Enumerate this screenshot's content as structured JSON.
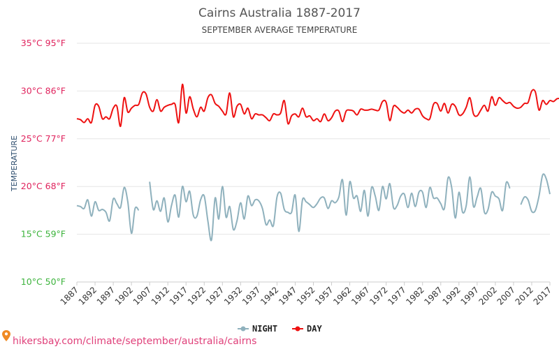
{
  "chart_data": {
    "type": "line",
    "title": "Cairns Australia 1887-2017",
    "subtitle": "SEPTEMBER AVERAGE TEMPERATURE",
    "ylabel": "TEMPERATURE",
    "ylim": [
      10,
      35
    ],
    "xlim": [
      1887,
      2017
    ],
    "y_ticks": [
      {
        "value": 35,
        "label": "35°C 95°F",
        "color": "#e0245e"
      },
      {
        "value": 30,
        "label": "30°C 86°F",
        "color": "#e0245e"
      },
      {
        "value": 25,
        "label": "25°C 77°F",
        "color": "#e0245e"
      },
      {
        "value": 20,
        "label": "20°C 68°F",
        "color": "#e0245e"
      },
      {
        "value": 15,
        "label": "15°C 59°F",
        "color": "#3cb33c"
      },
      {
        "value": 10,
        "label": "10°C 50°F",
        "color": "#3cb33c"
      }
    ],
    "x_ticks": [
      1887,
      1892,
      1897,
      1902,
      1907,
      1912,
      1917,
      1922,
      1927,
      1932,
      1937,
      1942,
      1947,
      1952,
      1957,
      1962,
      1967,
      1972,
      1977,
      1982,
      1987,
      1992,
      1997,
      2002,
      2007,
      2012,
      2017
    ],
    "grid": true,
    "legend_position": "bottom",
    "series": [
      {
        "name": "NIGHT",
        "color": "#8fb1bd",
        "start_year": 1887,
        "values": [
          18.0,
          17.9,
          17.7,
          18.6,
          16.9,
          18.4,
          17.5,
          17.6,
          17.3,
          16.4,
          18.7,
          18.2,
          17.8,
          19.9,
          18.4,
          15.1,
          17.7,
          17.5,
          null,
          null,
          20.5,
          17.6,
          18.5,
          17.4,
          18.8,
          16.3,
          18.0,
          19.1,
          16.8,
          20.0,
          18.4,
          19.5,
          17.0,
          16.9,
          18.6,
          19.0,
          16.4,
          14.4,
          18.8,
          16.6,
          20.0,
          16.8,
          17.9,
          15.5,
          16.4,
          18.3,
          16.6,
          19.0,
          18.0,
          18.6,
          18.5,
          17.7,
          16.0,
          16.5,
          15.9,
          18.9,
          19.3,
          17.6,
          17.3,
          17.3,
          19.1,
          15.3,
          18.6,
          18.4,
          18.1,
          17.8,
          18.2,
          18.8,
          18.8,
          17.7,
          18.5,
          18.3,
          18.9,
          20.7,
          17.0,
          20.5,
          18.8,
          19.0,
          17.4,
          19.6,
          16.9,
          19.9,
          19.0,
          17.5,
          20.0,
          18.7,
          20.3,
          17.8,
          18.0,
          19.0,
          19.2,
          17.8,
          19.3,
          17.9,
          19.4,
          19.4,
          17.8,
          19.9,
          18.8,
          18.8,
          18.2,
          17.7,
          20.9,
          19.9,
          16.7,
          19.4,
          17.3,
          18.0,
          21.0,
          17.9,
          18.9,
          19.8,
          17.3,
          17.6,
          19.4,
          19.0,
          18.7,
          17.5,
          20.4,
          19.8,
          null,
          null,
          18.1,
          18.9,
          18.6,
          17.4,
          17.5,
          19.0,
          21.2,
          20.8,
          19.2
        ]
      },
      {
        "name": "DAY",
        "color": "#ee1111",
        "start_year": 1887,
        "values": [
          27.1,
          27.0,
          26.7,
          27.1,
          26.7,
          28.5,
          28.4,
          27.1,
          27.3,
          27.1,
          28.2,
          28.4,
          26.3,
          29.3,
          27.8,
          28.2,
          28.5,
          28.6,
          29.8,
          29.7,
          28.3,
          27.9,
          29.1,
          27.9,
          28.3,
          28.5,
          28.6,
          28.6,
          26.7,
          30.7,
          27.7,
          29.4,
          28.1,
          27.3,
          28.3,
          27.9,
          29.3,
          29.6,
          28.7,
          28.4,
          27.9,
          27.6,
          29.8,
          27.3,
          28.4,
          28.6,
          27.6,
          28.2,
          27.1,
          27.6,
          27.5,
          27.5,
          27.2,
          26.9,
          27.6,
          27.5,
          27.7,
          29.0,
          26.6,
          27.4,
          27.6,
          27.3,
          28.2,
          27.3,
          27.4,
          26.9,
          27.1,
          26.8,
          27.6,
          26.9,
          27.2,
          27.9,
          27.9,
          26.8,
          27.9,
          28.0,
          27.9,
          27.5,
          28.1,
          28.0,
          28.0,
          28.1,
          28.0,
          28.0,
          28.9,
          28.8,
          26.9,
          28.4,
          28.3,
          27.9,
          27.7,
          28.0,
          27.7,
          28.1,
          28.1,
          27.4,
          27.1,
          27.1,
          28.6,
          28.7,
          27.9,
          28.7,
          27.7,
          28.6,
          28.4,
          27.5,
          27.6,
          28.3,
          29.3,
          27.6,
          27.4,
          28.0,
          28.5,
          27.9,
          29.4,
          28.5,
          29.3,
          29.0,
          28.7,
          28.8,
          28.4,
          28.2,
          28.3,
          28.7,
          28.8,
          30.0,
          29.9,
          28.0,
          29.0,
          28.6,
          29.0,
          28.9,
          29.2,
          29.2
        ]
      }
    ]
  },
  "source_text": "hikersbay.com/climate/september/australia/cairns",
  "colors": {
    "grid": "#e6e6e6",
    "axis": "#cccccc",
    "source": "#e0407a"
  }
}
